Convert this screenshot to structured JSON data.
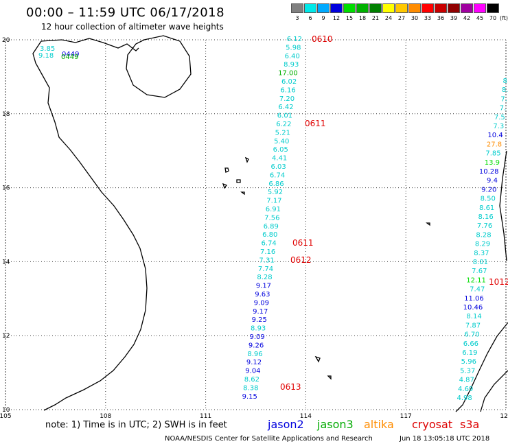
{
  "header": {
    "title": "00:00 – 11:59 UTC 06/17/2018",
    "subtitle": "12 hour collection of altimeter wave heights"
  },
  "legend": {
    "unit": "(ft)",
    "swatches": [
      {
        "label": "3",
        "color": "#808080"
      },
      {
        "label": "6",
        "color": "#00e8e8"
      },
      {
        "label": "9",
        "color": "#00aaff"
      },
      {
        "label": "12",
        "color": "#0000dd"
      },
      {
        "label": "15",
        "color": "#00dd00"
      },
      {
        "label": "18",
        "color": "#00b000"
      },
      {
        "label": "21",
        "color": "#008000"
      },
      {
        "label": "24",
        "color": "#ffff00"
      },
      {
        "label": "27",
        "color": "#ffc800"
      },
      {
        "label": "30",
        "color": "#ff8c00"
      },
      {
        "label": "33",
        "color": "#ff0000"
      },
      {
        "label": "36",
        "color": "#c80000"
      },
      {
        "label": "39",
        "color": "#900000"
      },
      {
        "label": "42",
        "color": "#a000a0"
      },
      {
        "label": "45",
        "color": "#ff00ff"
      },
      {
        "label": "70",
        "color": "#000000"
      }
    ]
  },
  "map": {
    "lon_range": [
      105,
      120
    ],
    "lat_range": [
      10,
      20
    ],
    "lon_ticks": [
      "105",
      "108",
      "111",
      "114",
      "117",
      "120"
    ],
    "lat_ticks": [
      "20",
      "18",
      "16",
      "14",
      "12",
      "10"
    ],
    "track_center": {
      "color": "#00cccc",
      "values": [
        "6.12",
        "5.98",
        "6.40",
        "8.93",
        "17.00",
        "6.02",
        "6.16",
        "7.20",
        "6.42",
        "6.01",
        "6.22",
        "5.21",
        "5.40",
        "6.05",
        "4.41",
        "6.03",
        "6.74",
        "6.86",
        "5.92",
        "7.17",
        "6.91",
        "7.56",
        "6.89",
        "6.80",
        "6.74",
        "7.16",
        "7.31",
        "7.74",
        "8.28",
        "9.17",
        "9.63",
        "9.09",
        "9.17",
        "9.25",
        "8.93",
        "9.09",
        "9.26",
        "8.96",
        "9.12",
        "9.04",
        "8.62",
        "8.38",
        "9.15"
      ],
      "colors": [
        "#00cccc",
        "#00cccc",
        "#00cccc",
        "#00cccc",
        "#00b000",
        "#00cccc",
        "#00cccc",
        "#00cccc",
        "#00cccc",
        "#00cccc",
        "#00cccc",
        "#00cccc",
        "#00cccc",
        "#00cccc",
        "#00cccc",
        "#00cccc",
        "#00cccc",
        "#00cccc",
        "#00cccc",
        "#00cccc",
        "#00cccc",
        "#00cccc",
        "#00cccc",
        "#00cccc",
        "#00cccc",
        "#00cccc",
        "#00cccc",
        "#00cccc",
        "#00cccc",
        "#0000dd",
        "#0000dd",
        "#0000dd",
        "#0000dd",
        "#0000dd",
        "#00cccc",
        "#0000dd",
        "#0000dd",
        "#00cccc",
        "#0000dd",
        "#0000dd",
        "#00cccc",
        "#00cccc",
        "#0000dd"
      ]
    },
    "track_east": {
      "values": [
        "8.",
        "8.",
        "7.",
        "7.",
        "7.5",
        "7.3",
        "10.4",
        "27.8",
        "7.85",
        "13.9",
        "10.28",
        "9.4",
        "9.20",
        "8.50",
        "8.61",
        "8.16",
        "7.76",
        "8.28",
        "8.29",
        "8.37",
        "8.01",
        "7.67",
        "12.11",
        "7.47",
        "11.06",
        "10.46",
        "8.14",
        "7.87",
        "6.70",
        "6.66",
        "6.19",
        "5.96",
        "5.37",
        "4.87",
        "4.69",
        "4.98"
      ],
      "colors": [
        "#00cccc",
        "#00cccc",
        "#00cccc",
        "#00cccc",
        "#00cccc",
        "#00cccc",
        "#0000dd",
        "#ff8c00",
        "#00cccc",
        "#00dd00",
        "#0000dd",
        "#0000dd",
        "#0000dd",
        "#00cccc",
        "#00cccc",
        "#00cccc",
        "#00cccc",
        "#00cccc",
        "#00cccc",
        "#00cccc",
        "#00cccc",
        "#00cccc",
        "#00dd00",
        "#00cccc",
        "#0000dd",
        "#0000dd",
        "#00cccc",
        "#00cccc",
        "#00cccc",
        "#00cccc",
        "#00cccc",
        "#00cccc",
        "#00cccc",
        "#00cccc",
        "#00cccc",
        "#00cccc"
      ]
    },
    "top_left_values": [
      "3.85",
      "9.18"
    ],
    "top_left_times": [
      "0449",
      "0449"
    ],
    "times": [
      "0610",
      "0611",
      "0611",
      "0612",
      "0613"
    ],
    "east_time": "1012"
  },
  "footer": {
    "note": "note: 1) Time is in UTC; 2) SWH is in feet",
    "satellites": [
      {
        "name": "jason2",
        "color": "#0000dd"
      },
      {
        "name": "jason3",
        "color": "#00aa00"
      },
      {
        "name": "altika",
        "color": "#ff8c00"
      },
      {
        "name": "cryosat",
        "color": "#dd0000"
      },
      {
        "name": "s3a",
        "color": "#dd0000"
      }
    ],
    "credit": "NOAA/NESDIS Center for Satellite Applications and Research",
    "timestamp": "Jun 18 13:05:18 UTC 2018"
  }
}
